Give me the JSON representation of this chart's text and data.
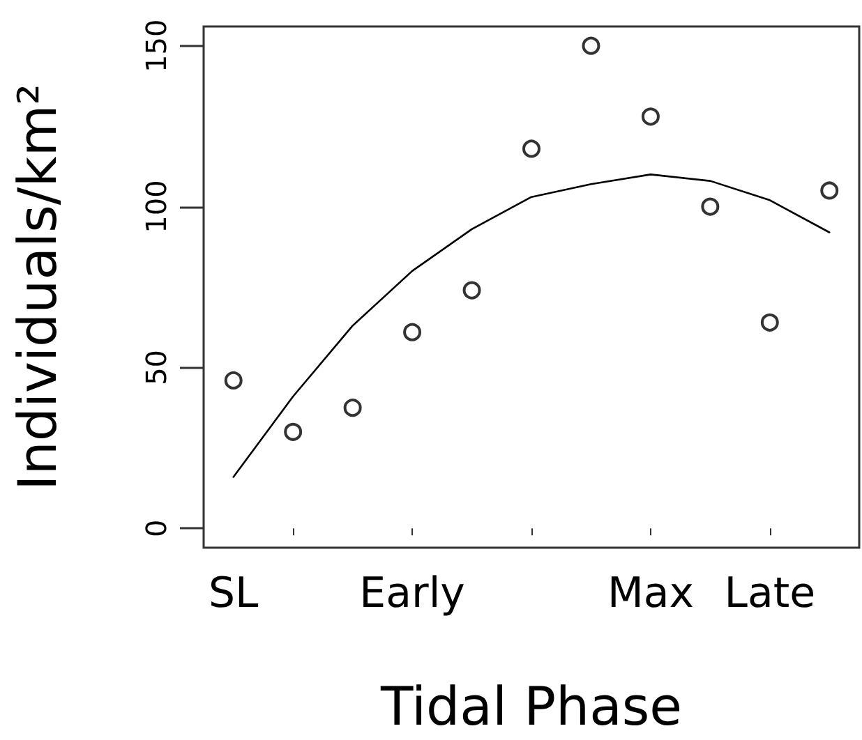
{
  "chart_data": {
    "type": "scatter",
    "xlabel": "Tidal Phase",
    "ylabel": "Individuals/km²",
    "categories": [
      "SL",
      null,
      null,
      "Early",
      null,
      null,
      null,
      "Max",
      null,
      "Late",
      null
    ],
    "series": [
      {
        "color": "#000000",
        "marker": "circle",
        "values": [
          46,
          30,
          37.5,
          61,
          74,
          118,
          150,
          128,
          100,
          64,
          105
        ]
      },
      {
        "type": "line",
        "color": "#000000",
        "marker": "none",
        "line_style": "solid",
        "values": [
          16,
          41,
          63,
          80,
          93,
          103,
          107,
          110,
          108,
          102,
          92
        ]
      }
    ],
    "ylim": [
      -6,
      156
    ],
    "yticks": [
      0,
      50,
      100,
      150
    ],
    "grid": false
  }
}
